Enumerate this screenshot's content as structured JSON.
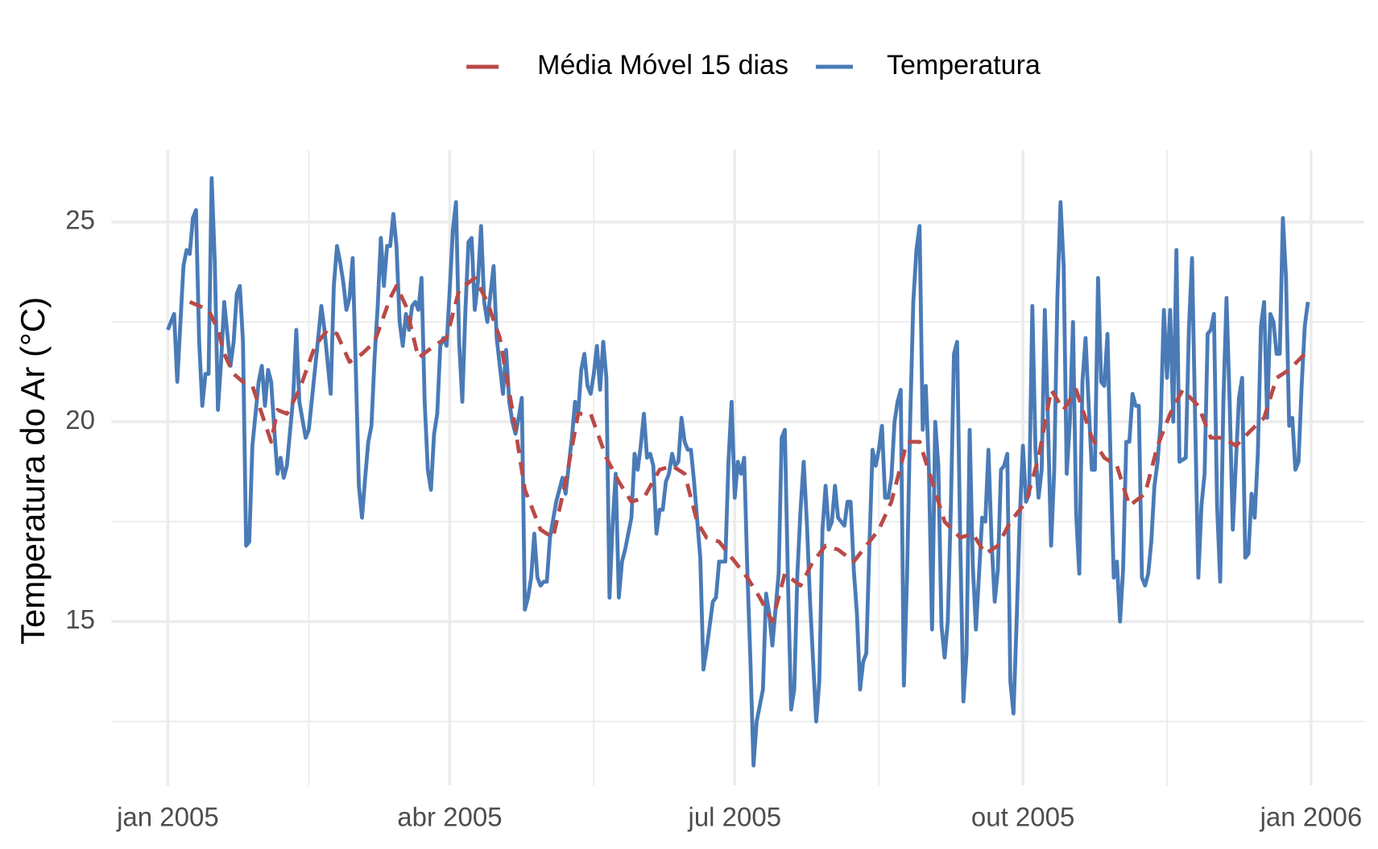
{
  "chart_data": {
    "type": "line",
    "y_label": "Temperatura do Ar (°C)",
    "xlim": [
      -18,
      382
    ],
    "xticks": [
      {
        "value": 0,
        "label": "jan 2005"
      },
      {
        "value": 90,
        "label": "abr 2005"
      },
      {
        "value": 181,
        "label": "jul 2005"
      },
      {
        "value": 273,
        "label": "out 2005"
      },
      {
        "value": 365,
        "label": "jan 2006"
      }
    ],
    "xminor": [
      45,
      136,
      227,
      319
    ],
    "ylim": [
      10.9,
      26.8
    ],
    "yticks": [
      15,
      20,
      25
    ],
    "yminor": [
      12.5,
      17.5,
      22.5
    ],
    "grid": true,
    "legend": "top",
    "series": [
      {
        "name": "Média Móvel 15 dias",
        "color": "#b94a48",
        "dashed": true,
        "x": [
          7,
          10,
          13,
          16,
          18,
          21,
          24,
          27,
          30,
          33,
          35,
          38,
          42,
          47,
          51,
          54,
          58,
          62,
          66,
          71,
          73,
          76,
          80,
          85,
          89,
          93,
          98,
          102,
          106,
          110,
          114,
          119,
          123,
          127,
          131,
          135,
          140,
          144,
          148,
          152,
          157,
          161,
          165,
          169,
          172,
          176,
          181,
          185,
          189,
          193,
          197,
          202,
          206,
          210,
          214,
          219,
          223,
          227,
          231,
          236,
          240,
          244,
          248,
          253,
          257,
          261,
          265,
          269,
          274,
          278,
          282,
          286,
          290,
          295,
          299,
          303,
          307,
          312,
          316,
          320,
          324,
          329,
          333,
          337,
          341,
          346,
          350,
          354,
          358,
          363
        ],
        "values": [
          23.0,
          22.9,
          22.8,
          22.3,
          21.7,
          21.2,
          21.0,
          20.9,
          20.2,
          19.5,
          20.3,
          20.2,
          20.8,
          21.9,
          22.3,
          22.2,
          21.5,
          21.7,
          22.0,
          23.1,
          23.4,
          22.9,
          21.6,
          21.9,
          22.1,
          23.3,
          23.6,
          23.0,
          22.1,
          20.3,
          18.3,
          17.3,
          17.1,
          18.5,
          20.2,
          20.2,
          19.1,
          18.5,
          18.0,
          18.1,
          18.8,
          18.9,
          18.7,
          17.5,
          17.1,
          17.0,
          16.5,
          16.1,
          15.6,
          15.0,
          16.2,
          15.9,
          16.5,
          16.9,
          16.8,
          16.5,
          16.9,
          17.3,
          18.0,
          19.5,
          19.5,
          18.5,
          17.5,
          17.1,
          17.2,
          16.7,
          16.9,
          17.5,
          18.0,
          19.1,
          20.8,
          20.3,
          20.8,
          19.6,
          19.1,
          18.9,
          17.9,
          18.2,
          19.4,
          20.2,
          20.8,
          20.4,
          19.6,
          19.6,
          19.4,
          19.8,
          20.1,
          21.1,
          21.3,
          21.7
        ]
      },
      {
        "name": "Temperatura",
        "color": "#4a7bb7",
        "dashed": false,
        "x": [
          0,
          2,
          3,
          5,
          6,
          7,
          8,
          9,
          10,
          11,
          12,
          13,
          14,
          15,
          16,
          17,
          18,
          20,
          21,
          22,
          23,
          24,
          25,
          26,
          27,
          29,
          30,
          31,
          32,
          33,
          34,
          35,
          36,
          37,
          38,
          40,
          41,
          42,
          44,
          45,
          48,
          49,
          50,
          52,
          53,
          54,
          55,
          56,
          57,
          58,
          59,
          60,
          61,
          62,
          63,
          64,
          65,
          66,
          67,
          68,
          69,
          70,
          71,
          72,
          73,
          74,
          75,
          76,
          77,
          78,
          79,
          80,
          81,
          82,
          83,
          84,
          85,
          86,
          87,
          88,
          89,
          90,
          91,
          92,
          93,
          94,
          95,
          96,
          97,
          98,
          99,
          100,
          101,
          102,
          104,
          105,
          106,
          107,
          108,
          109,
          110,
          111,
          112,
          113,
          114,
          115,
          116,
          117,
          118,
          119,
          120,
          121,
          122,
          124,
          126,
          127,
          129,
          130,
          131,
          132,
          133,
          134,
          135,
          136,
          137,
          138,
          139,
          140,
          141,
          142,
          143,
          144,
          145,
          146,
          148,
          149,
          150,
          151,
          152,
          153,
          154,
          155,
          156,
          157,
          158,
          159,
          160,
          161,
          162,
          163,
          164,
          165,
          166,
          167,
          168,
          170,
          171,
          172,
          173,
          174,
          175,
          176,
          177,
          178,
          179,
          180,
          181,
          182,
          183,
          184,
          185,
          186,
          187,
          188,
          189,
          190,
          191,
          192,
          193,
          194,
          195,
          196,
          197,
          198,
          199,
          200,
          201,
          202,
          203,
          204,
          205,
          207,
          208,
          209,
          210,
          211,
          212,
          213,
          214,
          215,
          216,
          217,
          218,
          219,
          220,
          221,
          222,
          223,
          224,
          225,
          226,
          227,
          228,
          229,
          230,
          231,
          232,
          233,
          234,
          235,
          236,
          237,
          238,
          239,
          240,
          241,
          242,
          243,
          244,
          245,
          246,
          247,
          248,
          249,
          250,
          251,
          252,
          253,
          254,
          255,
          256,
          257,
          258,
          260,
          261,
          262,
          263,
          264,
          265,
          266,
          267,
          268,
          269,
          270,
          271,
          272,
          273,
          274,
          275,
          276,
          277,
          278,
          279,
          280,
          281,
          282,
          283,
          284,
          285,
          286,
          287,
          288,
          289,
          290,
          291,
          292,
          293,
          294,
          295,
          296,
          297,
          298,
          299,
          300,
          301,
          302,
          303,
          304,
          305,
          306,
          307,
          308,
          309,
          310,
          311,
          312,
          313,
          314,
          315,
          316,
          317,
          318,
          319,
          320,
          321,
          322,
          323,
          325,
          326,
          327,
          328,
          329,
          330,
          331,
          332,
          333,
          334,
          335,
          336,
          337,
          338,
          339,
          340,
          341,
          342,
          343,
          344,
          345,
          346,
          347,
          348,
          349,
          350,
          351,
          352,
          353,
          354,
          355,
          356,
          357,
          358,
          359,
          360,
          361,
          362,
          363,
          364
        ],
        "values": [
          22.3,
          22.7,
          21.0,
          23.9,
          24.3,
          24.2,
          25.1,
          25.3,
          22.0,
          20.4,
          21.2,
          21.2,
          26.1,
          24.0,
          20.3,
          21.5,
          23.0,
          21.4,
          22.0,
          23.2,
          23.4,
          22.0,
          16.9,
          17.0,
          19.4,
          21.0,
          21.4,
          20.4,
          21.3,
          21.0,
          19.8,
          18.7,
          19.1,
          18.6,
          18.9,
          20.6,
          22.3,
          20.5,
          19.6,
          19.8,
          22.1,
          22.9,
          22.3,
          20.7,
          23.4,
          24.4,
          24.0,
          23.5,
          22.8,
          23.1,
          24.1,
          21.4,
          18.4,
          17.6,
          18.6,
          19.5,
          19.9,
          21.6,
          22.9,
          24.6,
          23.4,
          24.4,
          24.4,
          25.2,
          24.4,
          22.5,
          21.9,
          22.7,
          22.3,
          22.9,
          23.0,
          22.8,
          23.6,
          20.5,
          18.8,
          18.3,
          19.7,
          20.2,
          21.9,
          22.1,
          21.9,
          23.3,
          24.8,
          25.5,
          22.0,
          20.5,
          22.8,
          24.5,
          24.6,
          22.8,
          23.5,
          24.9,
          23.0,
          22.5,
          23.9,
          22.1,
          21.4,
          20.7,
          21.8,
          20.5,
          20.0,
          19.7,
          20.1,
          20.6,
          15.3,
          15.6,
          16.1,
          17.2,
          16.1,
          15.9,
          16.0,
          16.0,
          17.1,
          18.0,
          18.6,
          18.2,
          19.6,
          20.5,
          20.2,
          21.3,
          21.7,
          20.9,
          20.7,
          21.2,
          21.9,
          20.8,
          22.0,
          21.1,
          15.6,
          17.4,
          18.7,
          15.6,
          16.5,
          16.8,
          17.6,
          19.2,
          18.8,
          19.4,
          20.2,
          19.1,
          19.2,
          18.9,
          17.2,
          17.8,
          17.8,
          18.5,
          18.7,
          19.2,
          18.9,
          19.0,
          20.1,
          19.5,
          19.3,
          19.3,
          18.5,
          16.6,
          13.8,
          14.3,
          14.9,
          15.5,
          15.6,
          16.5,
          16.5,
          16.5,
          19.0,
          20.5,
          18.1,
          19.0,
          18.7,
          19.1,
          16.3,
          14.0,
          11.4,
          12.5,
          12.9,
          13.3,
          15.7,
          15.2,
          14.4,
          15.3,
          16.2,
          19.6,
          19.8,
          16.0,
          12.8,
          13.3,
          16.2,
          17.8,
          19.0,
          17.5,
          15.6,
          12.5,
          13.5,
          17.3,
          18.4,
          17.3,
          17.5,
          18.4,
          17.6,
          17.5,
          17.4,
          18.0,
          18.0,
          16.3,
          15.2,
          13.3,
          14.0,
          14.2,
          16.9,
          19.3,
          18.9,
          19.3,
          19.9,
          18.1,
          18.1,
          18.6,
          20.0,
          20.5,
          20.8,
          13.4,
          16.1,
          20.0,
          23.0,
          24.3,
          24.9,
          19.8,
          20.9,
          18.8,
          14.8,
          20.0,
          18.9,
          14.9,
          14.1,
          15.0,
          17.9,
          21.7,
          22.0,
          17.0,
          13.0,
          14.2,
          19.8,
          16.4,
          14.8,
          17.6,
          17.5,
          19.3,
          17.0,
          15.5,
          16.3,
          18.8,
          18.9,
          19.2,
          13.5,
          12.7,
          15.0,
          17.6,
          19.4,
          18.0,
          18.2,
          22.9,
          19.3,
          18.1,
          18.8,
          22.8,
          20.0,
          16.9,
          18.8,
          23.1,
          25.5,
          23.9,
          18.7,
          20.0,
          22.5,
          17.7,
          16.2,
          21.0,
          22.1,
          20.4,
          18.8,
          18.8,
          23.6,
          21.0,
          20.9,
          22.2,
          19.0,
          16.1,
          16.5,
          15.0,
          16.3,
          19.5,
          19.5,
          20.7,
          20.4,
          20.4,
          16.1,
          15.9,
          16.2,
          17.0,
          18.4,
          19.0,
          20.0,
          22.8,
          21.1,
          22.8,
          20.0,
          24.3,
          19.0,
          19.1,
          22.3,
          24.1,
          20.0,
          16.1,
          17.9,
          18.7,
          22.2,
          22.3,
          22.7,
          17.9,
          16.0,
          20.5,
          23.1,
          20.5,
          17.3,
          19.0,
          20.6,
          21.1,
          16.6,
          16.7,
          18.2,
          17.6,
          19.2,
          22.4,
          23.0,
          20.1,
          22.7,
          22.5,
          21.7,
          21.7,
          25.1,
          23.6,
          19.9,
          20.1,
          18.8,
          19.0,
          20.9,
          22.4,
          23.0
        ]
      }
    ]
  }
}
